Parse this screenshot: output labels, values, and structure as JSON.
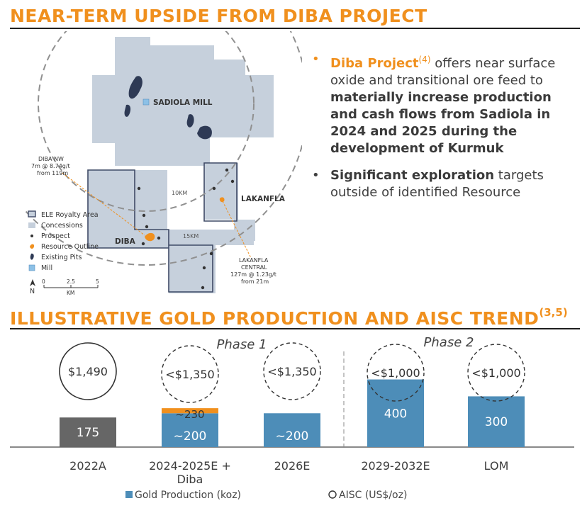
{
  "headings": {
    "top_title": "NEAR-TERM UPSIDE FROM DIBA PROJECT",
    "chart_title": "ILLUSTRATIVE GOLD PRODUCTION AND AISC TREND",
    "chart_title_note": "(3,5)"
  },
  "bullets": {
    "b1_highlight": "Diba Project",
    "b1_note": "(4)",
    "b1_text1": " offers near surface oxide and transitional ore feed to ",
    "b1_bold": "materially increase production and cash flows from Sadiola in 2024 and 2025 during the development of Kurmuk",
    "b2_bold": "Significant exploration",
    "b2_text": " targets outside of identified Resource"
  },
  "map": {
    "labels": {
      "mill": "SADIOLA MILL",
      "lakanfla": "LAKANFLA",
      "diba": "DIBA",
      "ring10": "10KM",
      "ring15": "15KM",
      "diba_nw_1": "DIBA NW",
      "diba_nw_2": "7m @ 8.74g/t",
      "diba_nw_3": "from 119m",
      "lak_c_1": "LAKANFLA",
      "lak_c_2": "CENTRAL",
      "lak_c_3": "127m @ 1.23g/t",
      "lak_c_4": "from 21m"
    },
    "legend": [
      "ELE Royalty Area",
      "Concessions",
      "Prospect",
      "Resource Outline",
      "Existing Pits",
      "Mill"
    ],
    "scale": {
      "north": "N",
      "ticks": [
        "0",
        "2.5",
        "5"
      ],
      "unit": "KM"
    },
    "colors": {
      "concession": "#c6d0dc",
      "outline": "#3f4a66",
      "resource": "#f0901e",
      "pits": "#2e3a55",
      "mill": "#8cc0e6",
      "ring": "#909090"
    }
  },
  "chart_data": {
    "type": "bar",
    "categories": [
      "2022A",
      "2024-2025E +\nDiba",
      "2026E",
      "2029-2032E",
      "LOM"
    ],
    "series": [
      {
        "name": "Gold Production (koz)",
        "values": [
          175,
          200,
          200,
          400,
          300
        ],
        "labels": [
          "175",
          "~200",
          "~200",
          "400",
          "300"
        ]
      },
      {
        "name": "Diba",
        "values": [
          0,
          30,
          0,
          0,
          0
        ],
        "labels": [
          "",
          "~230",
          "",
          "",
          ""
        ]
      }
    ],
    "aisc": {
      "name": "AISC (US$/oz)",
      "labels": [
        "$1,490",
        "<$1,350",
        "<$1,350",
        "<$1,000",
        "<$1,000"
      ]
    },
    "phases": [
      "Phase 1",
      "Phase 2"
    ],
    "legend": [
      "Gold Production (koz)",
      "AISC (US$/oz)"
    ],
    "ylim": [
      0,
      440
    ],
    "colors": {
      "actual": "#666666",
      "forecast": "#4d8db8",
      "diba": "#f0901e"
    }
  }
}
